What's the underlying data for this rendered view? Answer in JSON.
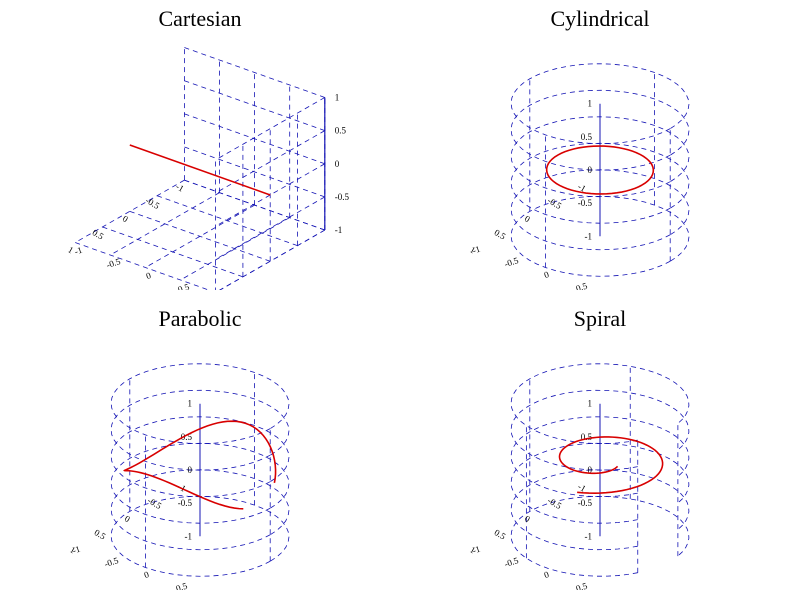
{
  "panels": {
    "cartesian": {
      "title": "Cartesian"
    },
    "cylindrical": {
      "title": "Cylindrical"
    },
    "parabolic": {
      "title": "Parabolic"
    },
    "spiral": {
      "title": "Spiral"
    }
  },
  "axes": {
    "range": [
      -1,
      1
    ],
    "ticks": [
      -1,
      -0.5,
      0,
      0.5,
      1
    ],
    "tick_labels": [
      "-1",
      "-0.5",
      "0",
      "0.5",
      "1"
    ],
    "tick_fontsize": 9
  },
  "colors": {
    "background": "#ffffff",
    "grid": "#1414b4",
    "axis": "#1414b4",
    "curve": "#d80000",
    "text": "#000000"
  },
  "style": {
    "grid_stroke_width": 0.8,
    "grid_dash": "5,4",
    "curve_stroke_width": 1.6,
    "title_fontsize": 22,
    "title_font": "Georgia",
    "cylinder_rings": 5
  },
  "projection": {
    "a": 0.9,
    "b": 0.32,
    "c": -0.7,
    "d": 0.4,
    "ez": -0.85,
    "scale": 78,
    "ox": 190,
    "oy": 130
  },
  "curves": {
    "cartesian": {
      "type": "line3d",
      "x": [
        -1,
        1
      ],
      "y": [
        0,
        0
      ],
      "z": [
        0,
        0
      ]
    },
    "cylindrical": {
      "type": "param",
      "fx": "0.6*Math.cos(t)",
      "fy": "0.6*Math.sin(t)",
      "fz": "0",
      "t0": 0,
      "t1": 6.2832,
      "n": 64
    },
    "parabolic": {
      "type": "param",
      "fx": "0.85*Math.cos(t)",
      "fy": "0.85*Math.sin(t)",
      "fz": "-0.7*(0.85*Math.cos(t))*(0.85*Math.cos(t))+0.3",
      "t0": 0.3,
      "t1": 5.8,
      "n": 80
    },
    "spiral": {
      "type": "param",
      "fx": "(0.25+0.08*t)*Math.cos(t)",
      "fy": "(0.25+0.08*t)*Math.sin(t)",
      "fz": "0.15",
      "t0": 0,
      "t1": 7.5,
      "n": 96
    }
  }
}
